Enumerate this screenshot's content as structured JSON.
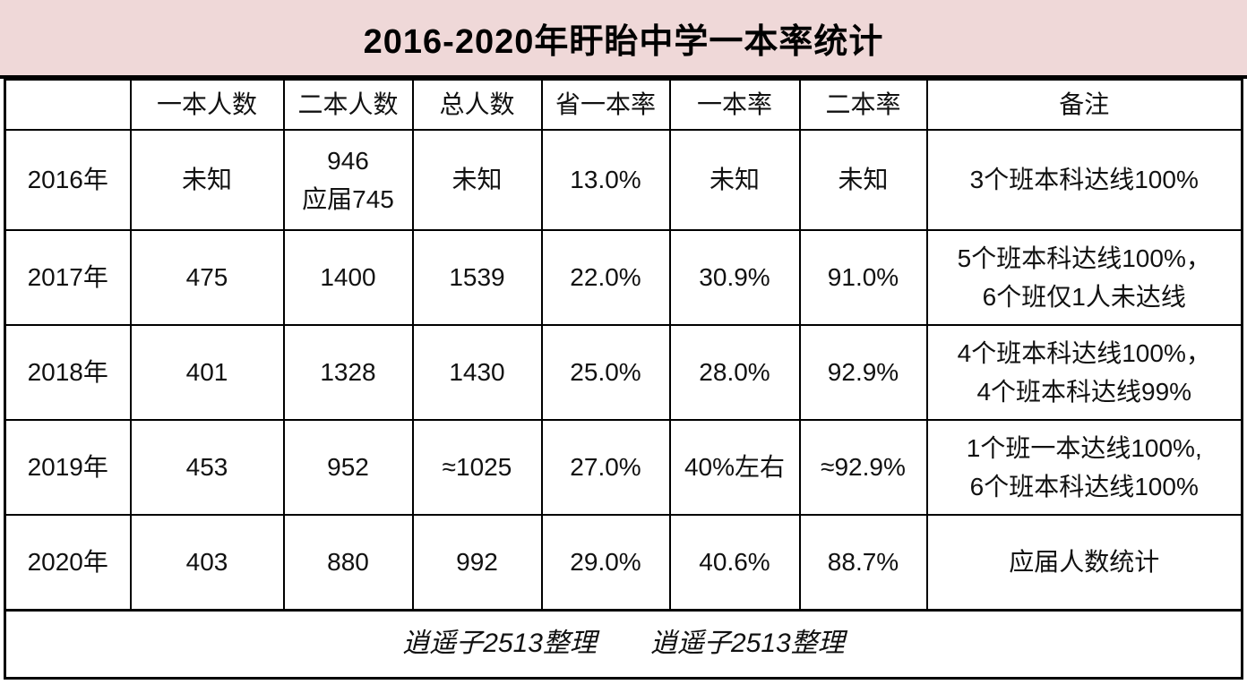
{
  "chart_data": {
    "type": "table",
    "title": "2016-2020年盱眙中学一本率统计",
    "columns": [
      "",
      "一本人数",
      "二本人数",
      "总人数",
      "省一本率",
      "一本率",
      "二本率",
      "备注"
    ],
    "rows": [
      [
        "2016年",
        "未知",
        "946\n应届745",
        "未知",
        "13.0%",
        "未知",
        "未知",
        "3个班本科达线100%"
      ],
      [
        "2017年",
        "475",
        "1400",
        "1539",
        "22.0%",
        "30.9%",
        "91.0%",
        "5个班本科达线100%，\n6个班仅1人未达线"
      ],
      [
        "2018年",
        "401",
        "1328",
        "1430",
        "25.0%",
        "28.0%",
        "92.9%",
        "4个班本科达线100%，\n4个班本科达线99%"
      ],
      [
        "2019年",
        "453",
        "952",
        "≈1025",
        "27.0%",
        "40%左右",
        "≈92.9%",
        "1个班一本达线100%,\n6个班本科达线100%"
      ],
      [
        "2020年",
        "403",
        "880",
        "992",
        "29.0%",
        "40.6%",
        "88.7%",
        "应届人数统计"
      ]
    ],
    "highlighted_cells": [
      {
        "row": "2017年",
        "column": "一本率",
        "value": "30.9%",
        "style": "bold-red"
      },
      {
        "row": "2018年",
        "column": "一本率",
        "value": "28.0%",
        "style": "bold-red"
      },
      {
        "row": "2019年",
        "column": "一本率",
        "value": "40%左右",
        "style": "bold-red"
      },
      {
        "row": "2020年",
        "column": "一本率",
        "value": "40.6%",
        "style": "bold-red"
      }
    ],
    "footer": "逍遥子2513整理　　逍遥子2513整理",
    "layout_hints": {
      "grid": "on",
      "title_position": "top-banner",
      "remark_column_align": "left"
    }
  },
  "colors": {
    "title_background": "#efd8d8",
    "highlight_red": "#dd1111",
    "border_black": "#000000",
    "body_background": "#ffffff"
  }
}
